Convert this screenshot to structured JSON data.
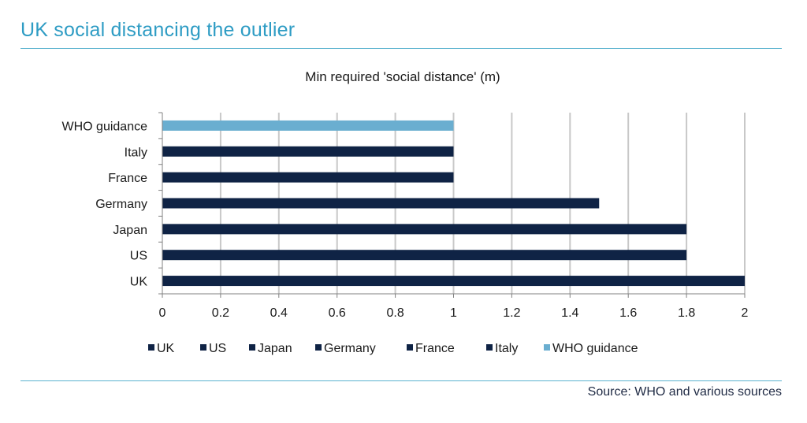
{
  "header": {
    "title": "UK social distancing the outlier"
  },
  "footer": {
    "source": "Source: WHO and various sources"
  },
  "chart_data": {
    "type": "bar",
    "orientation": "horizontal",
    "title": "Min required  'social distance' (m)",
    "xlabel": "",
    "ylabel": "",
    "xlim": [
      0,
      2
    ],
    "ticks": [
      "0",
      "0.2",
      "0.4",
      "0.6",
      "0.8",
      "1",
      "1.2",
      "1.4",
      "1.6",
      "1.8",
      "2"
    ],
    "tick_values": [
      0,
      0.2,
      0.4,
      0.6,
      0.8,
      1,
      1.2,
      1.4,
      1.6,
      1.8,
      2
    ],
    "grid": "vertical",
    "legend_position": "bottom",
    "categories": [
      "WHO guidance",
      "Italy",
      "France",
      "Germany",
      "Japan",
      "US",
      "UK"
    ],
    "values": [
      1,
      1,
      1,
      1.5,
      1.8,
      1.8,
      2
    ],
    "colors": [
      "#6aaed0",
      "#0f2345",
      "#0f2345",
      "#0f2345",
      "#0f2345",
      "#0f2345",
      "#0f2345"
    ],
    "legend": [
      {
        "label": "UK",
        "color": "#0f2345"
      },
      {
        "label": "US",
        "color": "#0f2345"
      },
      {
        "label": "Japan",
        "color": "#0f2345"
      },
      {
        "label": "Germany",
        "color": "#0f2345"
      },
      {
        "label": "France",
        "color": "#0f2345"
      },
      {
        "label": "Italy",
        "color": "#0f2345"
      },
      {
        "label": "WHO guidance",
        "color": "#6aaed0"
      }
    ]
  }
}
